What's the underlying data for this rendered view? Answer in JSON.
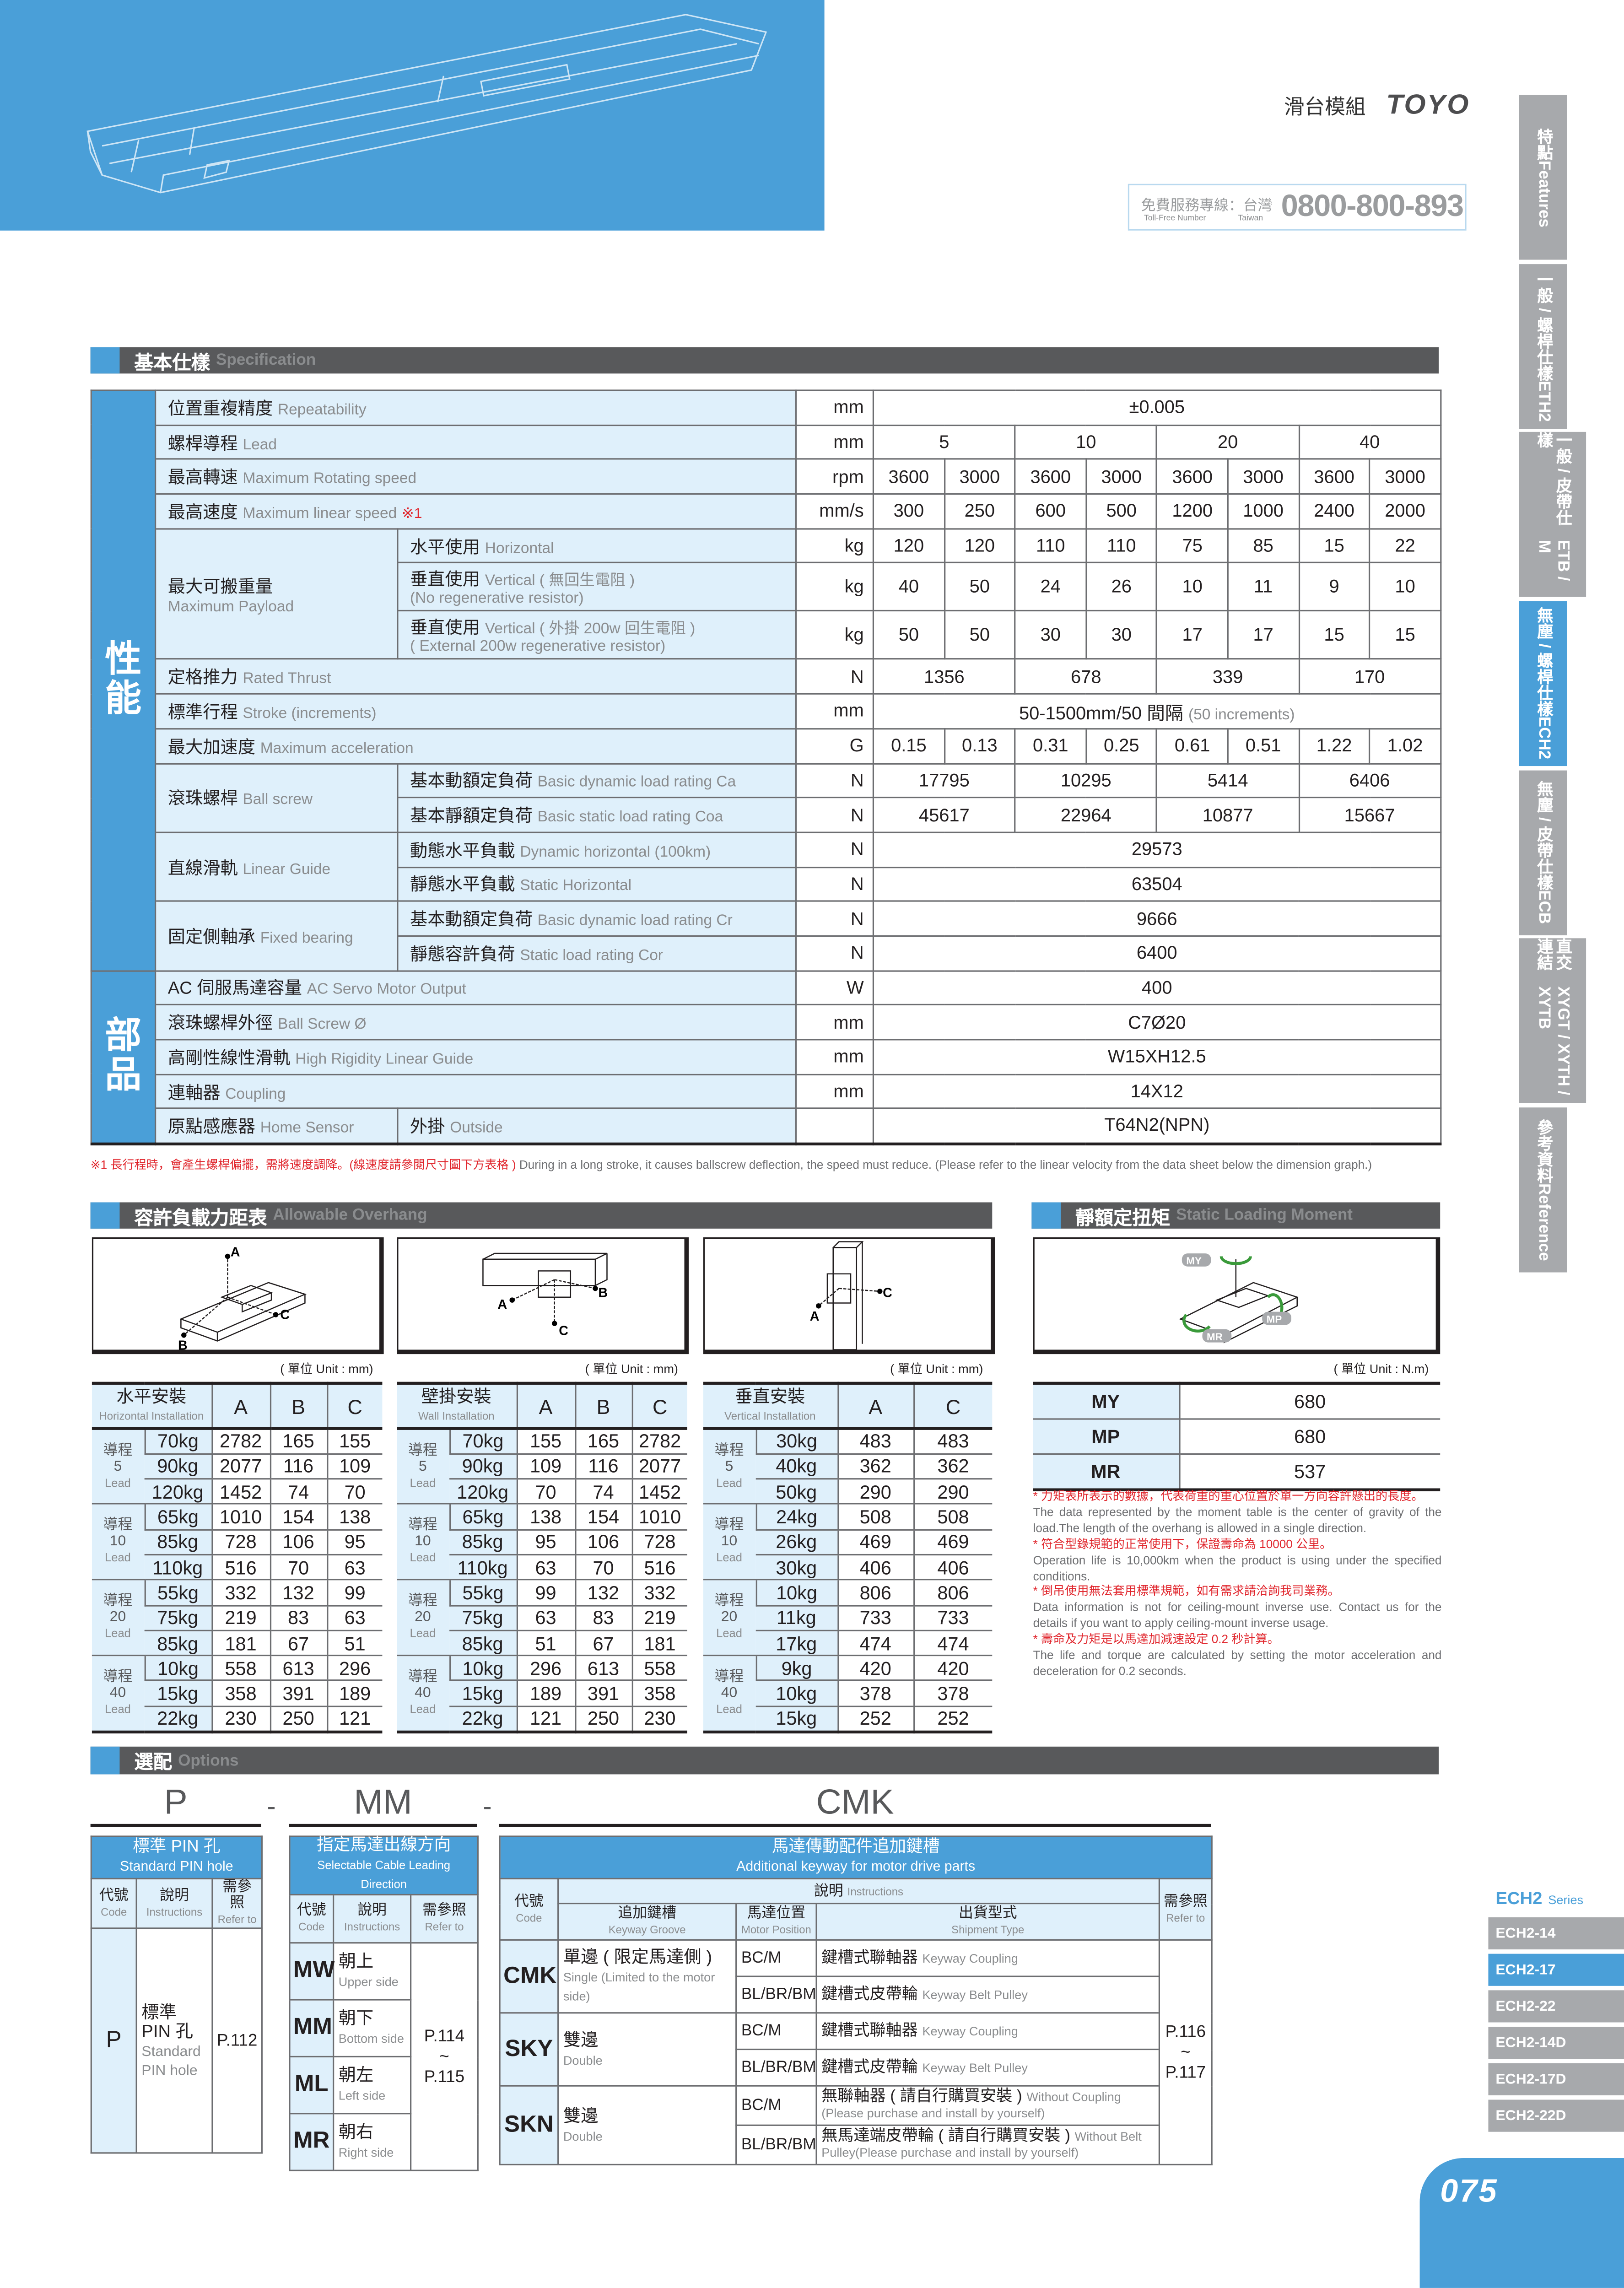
{
  "header": {
    "category": "滑台模組",
    "logo": "TOYO",
    "tollfree_zh": "免費服務專線：台灣",
    "tollfree_en": "Toll-Free Number",
    "taiwan_en": "Taiwan",
    "tollfree_number": "0800-800-893"
  },
  "side_tabs": [
    {
      "zh": "特點",
      "en": "Features",
      "active": false
    },
    {
      "zh": "一般 / 螺桿仕樣",
      "en": "ETH2",
      "active": false
    },
    {
      "zh": "一般 / 皮帶仕樣",
      "en": "ETB / M",
      "active": false
    },
    {
      "zh": "無塵 / 螺桿仕樣",
      "en": "ECH2",
      "active": true
    },
    {
      "zh": "無塵 / 皮帶仕樣",
      "en": "ECB",
      "active": false
    },
    {
      "zh": "直交連結",
      "en": "XYGT / XYTH / XYTB",
      "active": false
    },
    {
      "zh": "參考資料",
      "en": "Reference",
      "active": false
    }
  ],
  "spec": {
    "title_zh": "基本仕樣",
    "title_en": "Specification",
    "groups": [
      {
        "label": "性能",
        "items": [
          {
            "zh": "位置重複精度",
            "en": "Repeatability",
            "unit": "mm",
            "values": [
              "±0.005"
            ]
          },
          {
            "zh": "螺桿導程",
            "en": "Lead",
            "unit": "mm",
            "values": [
              "5",
              "10",
              "20",
              "40"
            ]
          },
          {
            "zh": "最高轉速",
            "en": "Maximum Rotating speed",
            "unit": "rpm",
            "values": [
              "3600",
              "3000",
              "3600",
              "3000",
              "3600",
              "3000",
              "3600",
              "3000"
            ]
          },
          {
            "zh": "最高速度",
            "en": "Maximum linear speed",
            "mark": "※1",
            "unit": "mm/s",
            "values": [
              "300",
              "250",
              "600",
              "500",
              "1200",
              "1000",
              "2400",
              "2000"
            ]
          },
          {
            "zh": "最大可搬重量",
            "en": "Maximum Payload",
            "sub": [
              {
                "zh": "水平使用",
                "en": "Horizontal",
                "unit": "kg",
                "values": [
                  "120",
                  "120",
                  "110",
                  "110",
                  "75",
                  "85",
                  "15",
                  "22"
                ]
              },
              {
                "zh": "垂直使用",
                "en": "Vertical ( 無回生電阻 )",
                "note": "(No regenerative resistor)",
                "unit": "kg",
                "values": [
                  "40",
                  "50",
                  "24",
                  "26",
                  "10",
                  "11",
                  "9",
                  "10"
                ]
              },
              {
                "zh": "垂直使用",
                "en": "Vertical ( 外掛 200w 回生電阻 )",
                "note": "( External 200w regenerative resistor)",
                "unit": "kg",
                "values": [
                  "50",
                  "50",
                  "30",
                  "30",
                  "17",
                  "17",
                  "15",
                  "15"
                ]
              }
            ]
          },
          {
            "zh": "定格推力",
            "en": "Rated Thrust",
            "unit": "N",
            "values": [
              "1356",
              "678",
              "339",
              "170"
            ]
          },
          {
            "zh": "標準行程",
            "en": "Stroke (increments)",
            "unit": "mm",
            "values": [
              "50-1500mm/50 間隔"
            ],
            "value_note": "(50 increments)"
          },
          {
            "zh": "最大加速度",
            "en": "Maximum acceleration",
            "unit": "G",
            "values": [
              "0.15",
              "0.13",
              "0.31",
              "0.25",
              "0.61",
              "0.51",
              "1.22",
              "1.02"
            ]
          },
          {
            "zh": "滾珠螺桿",
            "en": "Ball screw",
            "sub": [
              {
                "zh": "基本動額定負荷",
                "en": "Basic dynamic load rating Ca",
                "unit": "N",
                "values": [
                  "17795",
                  "10295",
                  "5414",
                  "6406"
                ]
              },
              {
                "zh": "基本靜額定負荷",
                "en": "Basic static load rating Coa",
                "unit": "N",
                "values": [
                  "45617",
                  "22964",
                  "10877",
                  "15667"
                ]
              }
            ]
          },
          {
            "zh": "直線滑軌",
            "en": "Linear Guide",
            "sub": [
              {
                "zh": "動態水平負載",
                "en": "Dynamic horizontal (100km)",
                "unit": "N",
                "values": [
                  "29573"
                ]
              },
              {
                "zh": "靜態水平負載",
                "en": "Static Horizontal",
                "unit": "N",
                "values": [
                  "63504"
                ]
              }
            ]
          },
          {
            "zh": "固定側軸承",
            "en": "Fixed bearing",
            "sub": [
              {
                "zh": "基本動額定負荷",
                "en": "Basic dynamic load rating Cr",
                "unit": "N",
                "values": [
                  "9666"
                ]
              },
              {
                "zh": "靜態容許負荷",
                "en": "Static load rating Cor",
                "unit": "N",
                "values": [
                  "6400"
                ]
              }
            ]
          }
        ]
      },
      {
        "label": "部品",
        "items": [
          {
            "zh": "AC 伺服馬達容量",
            "en": "AC Servo Motor Output",
            "unit": "W",
            "values": [
              "400"
            ]
          },
          {
            "zh": "滾珠螺桿外徑",
            "en": "Ball Screw Ø",
            "unit": "mm",
            "values": [
              "C7Ø20"
            ]
          },
          {
            "zh": "高剛性線性滑軌",
            "en": "High Rigidity Linear Guide",
            "unit": "mm",
            "values": [
              "W15XH12.5"
            ]
          },
          {
            "zh": "連軸器",
            "en": "Coupling",
            "unit": "mm",
            "values": [
              "14X12"
            ]
          },
          {
            "zh": "原點感應器",
            "en": "Home Sensor",
            "sub": [
              {
                "zh": "外掛",
                "en": "Outside",
                "unit": "",
                "values": [
                  "T64N2(NPN)"
                ]
              }
            ]
          }
        ]
      }
    ],
    "footnote_zh": "※1 長行程時，會產生螺桿偏擺，需將速度調降。(線速度請參閱尺寸圖下方表格 )",
    "footnote_en": "During in a long stroke, it causes ballscrew deflection, the speed must reduce. (Please refer to the linear velocity from the data sheet below the dimension graph.)"
  },
  "overhang": {
    "title_zh": "容許負載力距表",
    "title_en": "Allowable Overhang",
    "unit_label": "( 單位 Unit : mm)",
    "axis_labels": {
      "a": "A",
      "b": "B",
      "c": "C"
    },
    "lead_zh": "導程",
    "lead_en": "Lead",
    "tables": [
      {
        "zh": "水平安裝",
        "en": "Horizontal Installation",
        "cols": [
          "A",
          "B",
          "C"
        ],
        "leads": [
          {
            "lead": "5",
            "rows": [
              [
                "70kg",
                "2782",
                "165",
                "155"
              ],
              [
                "90kg",
                "2077",
                "116",
                "109"
              ],
              [
                "120kg",
                "1452",
                "74",
                "70"
              ]
            ]
          },
          {
            "lead": "10",
            "rows": [
              [
                "65kg",
                "1010",
                "154",
                "138"
              ],
              [
                "85kg",
                "728",
                "106",
                "95"
              ],
              [
                "110kg",
                "516",
                "70",
                "63"
              ]
            ]
          },
          {
            "lead": "20",
            "rows": [
              [
                "55kg",
                "332",
                "132",
                "99"
              ],
              [
                "75kg",
                "219",
                "83",
                "63"
              ],
              [
                "85kg",
                "181",
                "67",
                "51"
              ]
            ]
          },
          {
            "lead": "40",
            "rows": [
              [
                "10kg",
                "558",
                "613",
                "296"
              ],
              [
                "15kg",
                "358",
                "391",
                "189"
              ],
              [
                "22kg",
                "230",
                "250",
                "121"
              ]
            ]
          }
        ]
      },
      {
        "zh": "壁掛安裝",
        "en": "Wall Installation",
        "cols": [
          "A",
          "B",
          "C"
        ],
        "leads": [
          {
            "lead": "5",
            "rows": [
              [
                "70kg",
                "155",
                "165",
                "2782"
              ],
              [
                "90kg",
                "109",
                "116",
                "2077"
              ],
              [
                "120kg",
                "70",
                "74",
                "1452"
              ]
            ]
          },
          {
            "lead": "10",
            "rows": [
              [
                "65kg",
                "138",
                "154",
                "1010"
              ],
              [
                "85kg",
                "95",
                "106",
                "728"
              ],
              [
                "110kg",
                "63",
                "70",
                "516"
              ]
            ]
          },
          {
            "lead": "20",
            "rows": [
              [
                "55kg",
                "99",
                "132",
                "332"
              ],
              [
                "75kg",
                "63",
                "83",
                "219"
              ],
              [
                "85kg",
                "51",
                "67",
                "181"
              ]
            ]
          },
          {
            "lead": "40",
            "rows": [
              [
                "10kg",
                "296",
                "613",
                "558"
              ],
              [
                "15kg",
                "189",
                "391",
                "358"
              ],
              [
                "22kg",
                "121",
                "250",
                "230"
              ]
            ]
          }
        ]
      },
      {
        "zh": "垂直安裝",
        "en": "Vertical Installation",
        "cols": [
          "A",
          "C"
        ],
        "leads": [
          {
            "lead": "5",
            "rows": [
              [
                "30kg",
                "483",
                "483"
              ],
              [
                "40kg",
                "362",
                "362"
              ],
              [
                "50kg",
                "290",
                "290"
              ]
            ]
          },
          {
            "lead": "10",
            "rows": [
              [
                "24kg",
                "508",
                "508"
              ],
              [
                "26kg",
                "469",
                "469"
              ],
              [
                "30kg",
                "406",
                "406"
              ]
            ]
          },
          {
            "lead": "20",
            "rows": [
              [
                "10kg",
                "806",
                "806"
              ],
              [
                "11kg",
                "733",
                "733"
              ],
              [
                "17kg",
                "474",
                "474"
              ]
            ]
          },
          {
            "lead": "40",
            "rows": [
              [
                "9kg",
                "420",
                "420"
              ],
              [
                "10kg",
                "378",
                "378"
              ],
              [
                "15kg",
                "252",
                "252"
              ]
            ]
          }
        ]
      }
    ]
  },
  "moment": {
    "title_zh": "靜額定扭矩",
    "title_en": "Static Loading Moment",
    "unit_label": "( 單位 Unit : N.m)",
    "rows": [
      {
        "key": "MY",
        "value": "680"
      },
      {
        "key": "MP",
        "value": "680"
      },
      {
        "key": "MR",
        "value": "537"
      }
    ],
    "notes": [
      {
        "zh": "* 力矩表所表示的數據，代表荷重的重心位置於單一方向容許懸出的長度。",
        "en": "The data represented by the moment table is the center of gravity of the load.The length of the overhang is allowed in a single direction."
      },
      {
        "zh": "* 符合型錄規範的正常使用下，保證壽命為 10000 公里。",
        "en": "Operation life is 10,000km when the product is using under the specified conditions."
      },
      {
        "zh": "* 倒吊使用無法套用標準規範，如有需求請洽詢我司業務。",
        "en": "Data information is not for ceiling-mount inverse use. Contact us for the details if you want to apply ceiling-mount inverse usage."
      },
      {
        "zh": "* 壽命及力矩是以馬達加減速設定 0.2 秒計算。",
        "en": "The life and torque are calculated by setting the motor acceleration and deceleration for 0.2 seconds."
      }
    ]
  },
  "options": {
    "title_zh": "選配",
    "title_en": "Options",
    "codes": [
      "P",
      "MM",
      "CMK"
    ],
    "separator": "-",
    "hdr": {
      "code_zh": "代號",
      "code_en": "Code",
      "ins_zh": "說明",
      "ins_en": "Instructions",
      "ref_zh": "需參照",
      "ref_en": "Refer to"
    },
    "pin": {
      "title_zh": "標準 PIN 孔",
      "title_en": "Standard PIN hole",
      "code": "P",
      "ins_zh": "標準 PIN 孔",
      "ins_en": "Standard PIN hole",
      "ref": "P.112"
    },
    "cable": {
      "title_zh": "指定馬達出線方向",
      "title_en": "Selectable Cable Leading Direction",
      "ref1": "P.114",
      "tilde": "~",
      "ref2": "P.115",
      "rows": [
        {
          "code": "MW",
          "zh": "朝上",
          "en": "Upper side"
        },
        {
          "code": "MM",
          "zh": "朝下",
          "en": "Bottom side"
        },
        {
          "code": "ML",
          "zh": "朝左",
          "en": "Left side"
        },
        {
          "code": "MR",
          "zh": "朝右",
          "en": "Right side"
        }
      ]
    },
    "keyway": {
      "title_zh": "馬達傳動配件追加鍵槽",
      "title_en": "Additional keyway for motor drive parts",
      "col_groove_zh": "追加鍵槽",
      "col_groove_en": "Keyway Groove",
      "col_pos_zh": "馬達位置",
      "col_pos_en": "Motor Position",
      "col_ship_zh": "出貨型式",
      "col_ship_en": "Shipment Type",
      "ref1": "P.116",
      "tilde": "~",
      "ref2": "P.117",
      "rows": [
        {
          "code": "CMK",
          "zh": "單邊 ( 限定馬達側 )",
          "en": "Single (Limited to the motor side)",
          "items": [
            {
              "pos": "BC/M",
              "zh": "鍵槽式聯軸器",
              "en": "Keyway Coupling"
            },
            {
              "pos": "BL/BR/BM",
              "zh": "鍵槽式皮帶輪",
              "en": "Keyway Belt Pulley"
            }
          ]
        },
        {
          "code": "SKY",
          "zh": "雙邊",
          "en": "Double",
          "items": [
            {
              "pos": "BC/M",
              "zh": "鍵槽式聯軸器",
              "en": "Keyway Coupling"
            },
            {
              "pos": "BL/BR/BM",
              "zh": "鍵槽式皮帶輪",
              "en": "Keyway Belt Pulley"
            }
          ]
        },
        {
          "code": "SKN",
          "zh": "雙邊",
          "en": "Double",
          "items": [
            {
              "pos": "BC/M",
              "zh": "無聯軸器 ( 請自行購買安裝 )",
              "en": "Without Coupling (Please purchase and install by yourself)"
            },
            {
              "pos": "BL/BR/BM",
              "zh": "無馬達端皮帶輪 ( 請自行購買安裝 )",
              "en": "Without Belt Pulley(Please purchase and install by yourself)"
            }
          ]
        }
      ]
    }
  },
  "series": {
    "name": "ECH2",
    "label": "Series",
    "items": [
      {
        "label": "ECH2-14",
        "active": false
      },
      {
        "label": "ECH2-17",
        "active": true
      },
      {
        "label": "ECH2-22",
        "active": false
      },
      {
        "label": "ECH2-14D",
        "active": false
      },
      {
        "label": "ECH2-17D",
        "active": false
      },
      {
        "label": "ECH2-22D",
        "active": false
      }
    ]
  },
  "page_number": "075",
  "colors": {
    "accent": "#4a9fd8",
    "light": "#dff0fb",
    "bar": "#58595b",
    "tab": "#a7a9ac",
    "note_red": "#e0242b"
  }
}
